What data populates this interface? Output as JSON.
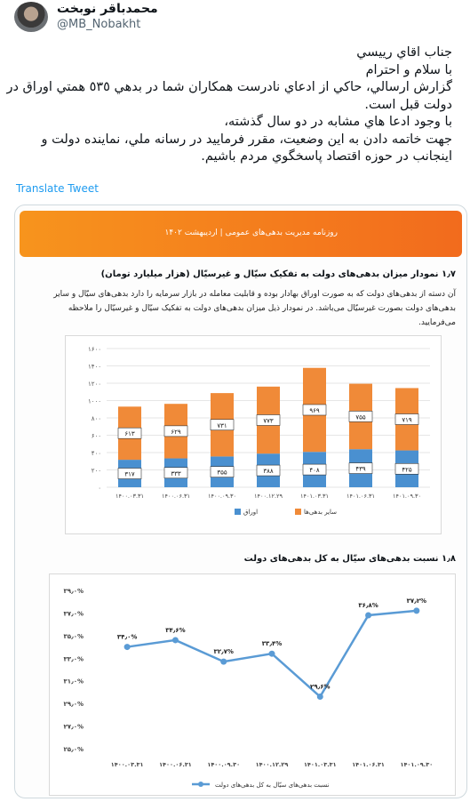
{
  "user": {
    "display_name": "محمدباقر نوبخت",
    "handle": "@MB_Nobakht"
  },
  "tweet": {
    "lines": [
      "جناب اقاي رييسي",
      "با سلام و احترام",
      "گزارش ارسالي، حاكي از ادعاي  نادرست همكاران شما در بدهي ٥٣٥ همتي اوراق در",
      "دولت قبل است.",
      "با وجود ادعا هاي مشابه در دو سال گذشته،",
      "جهت خاتمه دادن به اين وضعيت، مقرر فرماييد در رسانه ملي، نماينده دولت و",
      "اينجانب در حوزه اقتصاد پاسخگوي مردم باشيم."
    ],
    "translate_label": "Translate Tweet"
  },
  "report": {
    "banner": "روزنامه مدیریت بدهی‌های عمومی | اردیبهشت ۱۴۰۲",
    "section1_title": "۱٫۷   نمودار میزان بدهی‌های دولت به تفکیک سیّال و غیرسیّال (هزار میلیارد تومان)",
    "section1_para": "آن دسته از بدهی‌های دولت که به صورت اوراق بهادار بوده و قابلیت معامله در بازار سرمایه را دارد بدهی‌های سیّال و سایر بدهی‌های دولت بصورت غیرسیّال می‌باشد. در نمودار ذیل میزان بدهی‌های دولت به تفکیک سیّال و غیرسیّال را ملاحظه می‌فرمایید.",
    "section2_title": "۱٫۸   نسبت بدهی‌های سیّال به کل بدهی‌های دولت"
  },
  "chart_data": [
    {
      "type": "bar",
      "stacked": true,
      "categories": [
        "۱۴۰۰.۰۳.۳۱",
        "۱۴۰۰.۰۶.۳۱",
        "۱۴۰۰.۰۹.۳۰",
        "۱۴۰۰.۱۲.۲۹",
        "۱۴۰۱.۰۳.۳۱",
        "۱۴۰۱.۰۶.۳۱",
        "۱۴۰۱.۰۹.۳۰"
      ],
      "series": [
        {
          "name": "اوراق",
          "color": "#4a90d0",
          "values": [
            317,
            333,
            355,
            388,
            408,
            439,
            425
          ],
          "labels": [
            "۳۱۷",
            "۳۳۳",
            "۳۵۵",
            "۳۸۸",
            "۴۰۸",
            "۴۳۹",
            "۴۲۵"
          ]
        },
        {
          "name": "سایر بدهی‌ها",
          "color": "#f08a38",
          "values": [
            613,
            629,
            731,
            773,
            969,
            755,
            719
          ],
          "labels": [
            "۶۱۳",
            "۶۲۹",
            "۷۳۱",
            "۷۷۳",
            "۹۶۹",
            "۷۵۵",
            "۷۱۹"
          ]
        }
      ],
      "ylim": [
        0,
        1600
      ],
      "yticks": [
        0,
        200,
        400,
        600,
        800,
        1000,
        1200,
        1400,
        1600
      ],
      "ytick_labels": [
        "۰",
        "۲۰۰",
        "۴۰۰",
        "۶۰۰",
        "۸۰۰",
        "۱۰۰۰",
        "۱۲۰۰",
        "۱۴۰۰",
        "۱۶۰۰"
      ],
      "legend": "bottom",
      "grid": true
    },
    {
      "type": "line",
      "categories": [
        "۱۴۰۰.۰۳.۳۱",
        "۱۴۰۰.۰۶.۳۱",
        "۱۴۰۰.۰۹.۳۰",
        "۱۴۰۰.۱۲.۲۹",
        "۱۴۰۱.۰۳.۳۱",
        "۱۴۰۱.۰۶.۳۱",
        "۱۴۰۱.۰۹.۳۰"
      ],
      "series": [
        {
          "name": "نسبت بدهی‌های سیّال به کل بدهی‌های دولت",
          "color": "#5a9bd5",
          "values": [
            34.0,
            34.6,
            32.7,
            33.4,
            29.6,
            36.8,
            37.2
          ],
          "labels": [
            "۳۴٫۰%",
            "۳۴٫۶%",
            "۳۲٫۷%",
            "۳۳٫۴%",
            "۲۹٫۶%",
            "۳۶٫۸%",
            "۳۷٫۲%"
          ]
        }
      ],
      "ylim": [
        25,
        39
      ],
      "yticks": [
        25,
        27,
        29,
        31,
        33,
        35,
        37,
        39
      ],
      "ytick_labels": [
        "۲۵٫۰%",
        "۲۷٫۰%",
        "۲۹٫۰%",
        "۳۱٫۰%",
        "۳۳٫۰%",
        "۳۵٫۰%",
        "۳۷٫۰%",
        "۳۹٫۰%"
      ],
      "legend": "bottom",
      "grid": false
    }
  ]
}
